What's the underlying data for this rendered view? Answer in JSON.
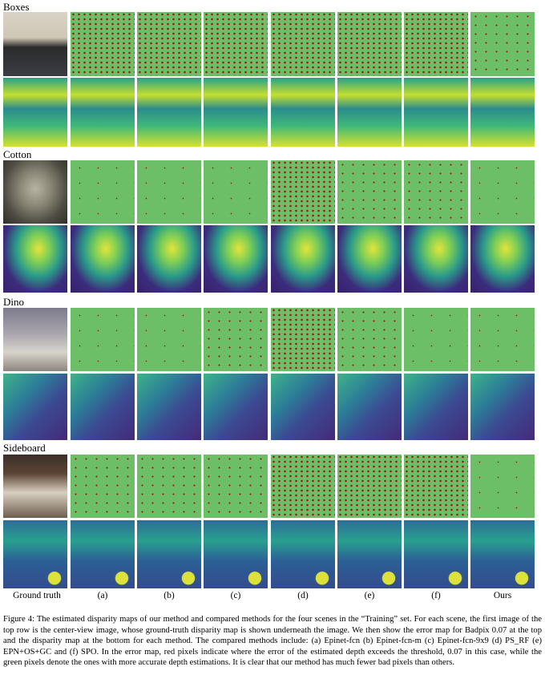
{
  "scenes": [
    {
      "name": "Boxes"
    },
    {
      "name": "Cotton"
    },
    {
      "name": "Dino"
    },
    {
      "name": "Sideboard"
    }
  ],
  "columns": [
    "Ground truth",
    "(a)",
    "(b)",
    "(c)",
    "(d)",
    "(e)",
    "(f)",
    "Ours"
  ],
  "caption": "Figure 4: The estimated disparity maps of our method and compared methods for the four scenes in the “Training” set. For each scene, the first image of the top row is the center-view image, whose ground-truth disparity map is shown underneath the image. We then show the error map for Badpix 0.07 at the top and the disparity map at the bottom for each method. The compared methods include: (a) Epinet-fcn (b) Epinet-fcn-m (c) Epinet-fcn-9x9 (d) PS_RF (e) EPN+OS+GC and (f) SPO. In the error map, red pixels indicate where the error of the estimated depth exceeds the threshold, 0.07 in this case, while the green pixels denote the ones with more accurate depth estimations. It is clear that our method has much fewer bad pixels than others."
}
